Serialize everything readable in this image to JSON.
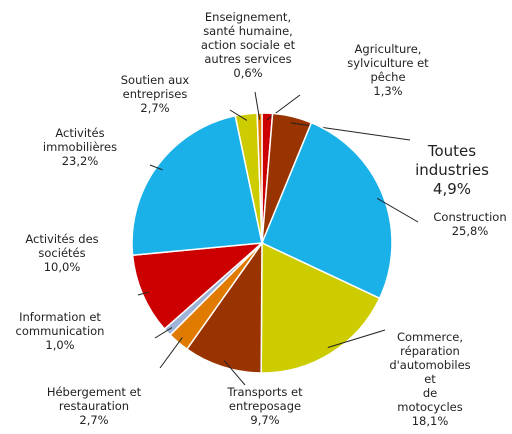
{
  "chart_data": {
    "type": "pie",
    "categories": [
      "Agriculture,\nsylviculture et\npêche",
      "Toutes\nindustries",
      "Construction",
      "Commerce,\nréparation\nd'automobiles et\nde motocycles",
      "Transports et\nentreposage",
      "Hébergement et\nrestauration",
      "Information et\ncommunication",
      "Activités des\nsociétés",
      "Activités\nimmobilières",
      "Soutien aux\nentreprises",
      "Enseignement,\nsanté humaine,\naction sociale et\nautres services"
    ],
    "values": [
      1.3,
      4.9,
      25.8,
      18.1,
      9.7,
      2.7,
      1.0,
      10.0,
      23.2,
      2.7,
      0.6
    ],
    "value_labels": [
      "1,3%",
      "4,9%",
      "25,8%",
      "18,1%",
      "9,7%",
      "2,7%",
      "1,0%",
      "10,0%",
      "23,2%",
      "2,7%",
      "0,6%"
    ],
    "colors": [
      "#cc0000",
      "#993300",
      "#1ab0e8",
      "#cccc00",
      "#993300",
      "#e07b00",
      "#9fb3d6",
      "#cc0000",
      "#1ab0e8",
      "#cccc00",
      "#e07b00"
    ]
  }
}
